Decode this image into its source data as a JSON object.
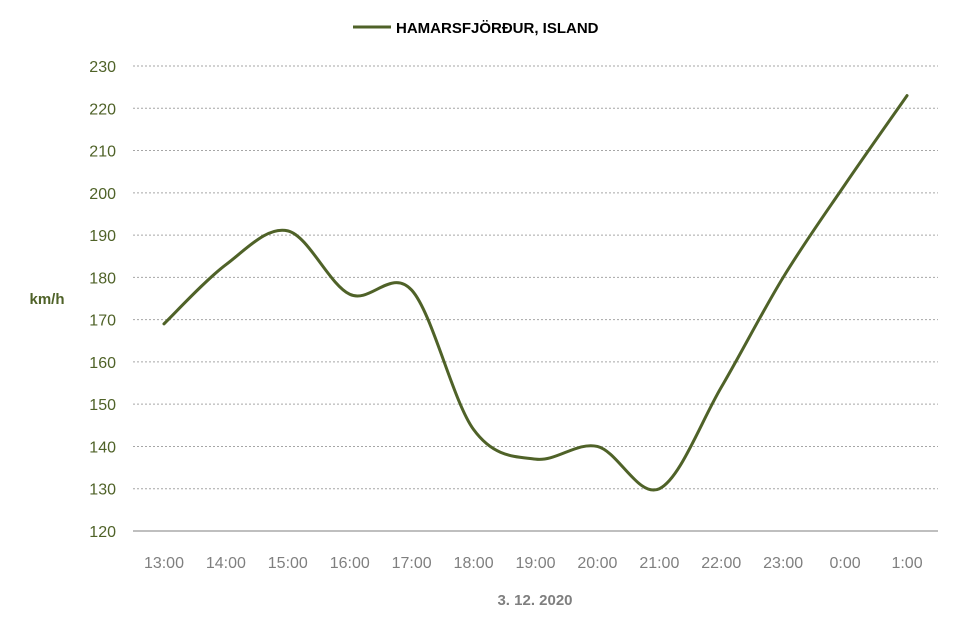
{
  "colors": {
    "series": "#4f6228",
    "axis_text_y": "#4f6228",
    "axis_text_x": "#7f7f7f",
    "grid": "#a6a6a6",
    "axis_line": "#7f7f7f",
    "legend_text": "#000000"
  },
  "chart_data": {
    "type": "line",
    "smooth": true,
    "categories": [
      "13:00",
      "14:00",
      "15:00",
      "16:00",
      "17:00",
      "18:00",
      "19:00",
      "20:00",
      "21:00",
      "22:00",
      "23:00",
      "0:00",
      "1:00"
    ],
    "series": [
      {
        "name": "HAMARSFJÖRÐUR, ISLAND",
        "values": [
          169,
          183,
          191,
          176,
          177,
          144,
          137,
          140,
          130,
          154,
          180,
          202,
          223
        ]
      }
    ],
    "ylabel": "km/h",
    "xlabel": "3. 12. 2020",
    "ylim": [
      120,
      230
    ],
    "y_ticks": [
      120,
      130,
      140,
      150,
      160,
      170,
      180,
      190,
      200,
      210,
      220,
      230
    ],
    "grid": "horizontal-dashed",
    "legend": "top-center"
  }
}
